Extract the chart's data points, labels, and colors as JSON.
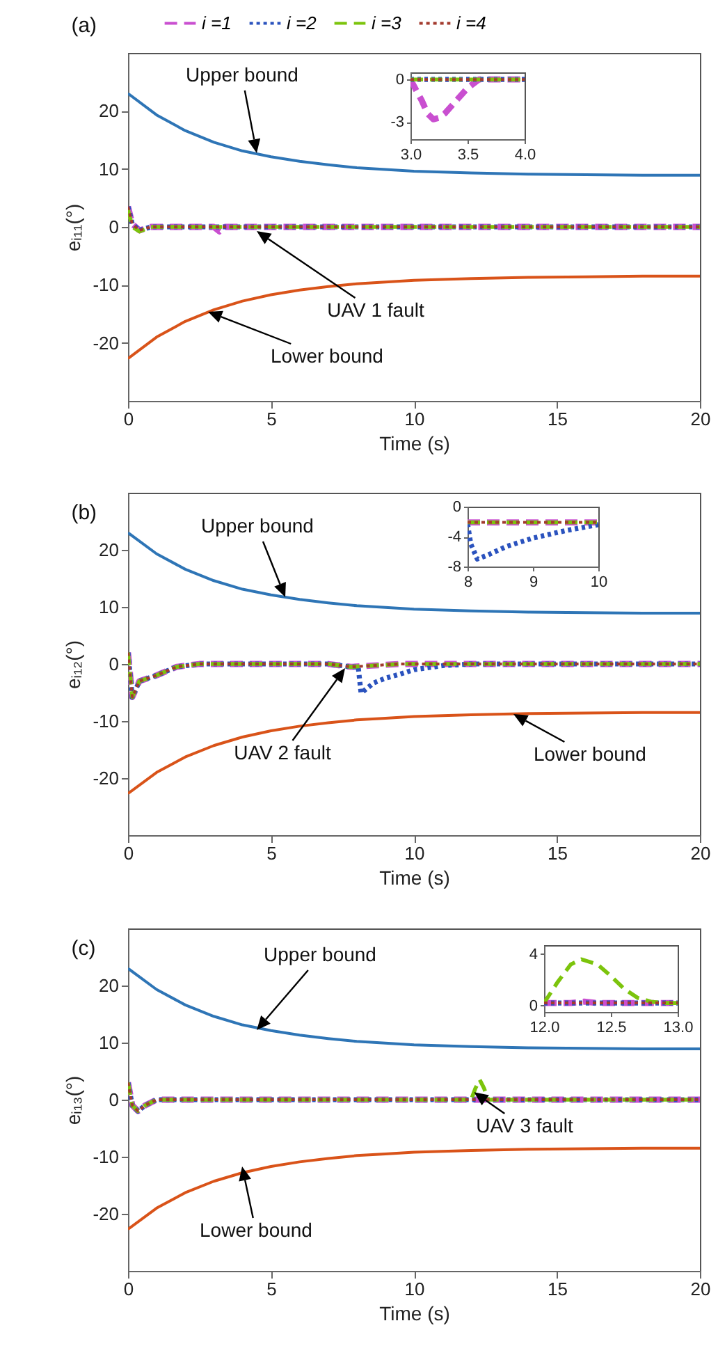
{
  "chart_data": [
    {
      "type": "line",
      "title": "(a)",
      "xlabel": "Time (s)",
      "ylabel": "eᵢ₁₁(°)",
      "xlim": [
        0,
        20
      ],
      "xticks": [
        0,
        5,
        10,
        15,
        20
      ],
      "ylim": [
        -30,
        30
      ],
      "yticks": [
        -20,
        -10,
        0,
        10,
        20
      ],
      "legend": "top",
      "series": [
        {
          "color": "#2e75b6",
          "line_style": "solid",
          "x": [
            0,
            1,
            2,
            3,
            4,
            5,
            6,
            7,
            8,
            9,
            10,
            12,
            14,
            16,
            18,
            20
          ],
          "values": [
            23,
            19.3,
            16.6,
            14.6,
            13.1,
            12.1,
            11.3,
            10.7,
            10.2,
            9.9,
            9.6,
            9.3,
            9.1,
            9.0,
            8.9,
            8.9
          ]
        },
        {
          "color": "#d95319",
          "line_style": "solid",
          "x": [
            0,
            1,
            2,
            3,
            4,
            5,
            6,
            7,
            8,
            9,
            10,
            12,
            14,
            16,
            18,
            20
          ],
          "values": [
            -22.7,
            -19,
            -16.3,
            -14.3,
            -12.8,
            -11.7,
            -10.9,
            -10.3,
            -9.8,
            -9.5,
            -9.2,
            -8.9,
            -8.7,
            -8.6,
            -8.5,
            -8.5
          ]
        },
        {
          "name": "i =1",
          "color": "#c94fd0",
          "line_style": "dashed",
          "x": [
            0,
            0.15,
            0.4,
            0.8,
            3.0,
            3.2,
            3.4,
            20
          ],
          "values": [
            3.5,
            0.5,
            -0.6,
            0,
            0,
            -0.8,
            0,
            0
          ]
        },
        {
          "name": "i =2",
          "color": "#2a52be",
          "line_style": "dotted",
          "x": [
            0,
            0.15,
            0.4,
            0.8,
            20
          ],
          "values": [
            3.5,
            0.5,
            -0.6,
            0,
            0
          ]
        },
        {
          "name": "i =3",
          "color": "#7cc40c",
          "line_style": "dashed",
          "x": [
            0,
            0.15,
            0.4,
            0.8,
            20
          ],
          "values": [
            3,
            0,
            -0.8,
            0,
            0
          ]
        },
        {
          "name": "i =4",
          "color": "#a33a2e",
          "line_style": "dotted",
          "x": [
            0,
            0.15,
            0.4,
            0.8,
            20
          ],
          "values": [
            3.5,
            0.5,
            -0.6,
            0,
            0
          ]
        }
      ],
      "annotations": [
        "Upper bound",
        "UAV 1 fault",
        "Lower bound"
      ]
    },
    {
      "type": "line",
      "xlim": [
        3,
        4
      ],
      "xticks": [
        {
          "value": 3,
          "label": "3.0"
        },
        3.5,
        {
          "value": 4,
          "label": "4.0"
        }
      ],
      "ylim": [
        -4.2,
        0.5
      ],
      "yticks": [
        -3,
        0
      ],
      "series": [
        {
          "color": "#c94fd0",
          "line_style": "dashed",
          "x": [
            3,
            3.1,
            3.15,
            3.2,
            3.25,
            3.3,
            3.4,
            3.5,
            3.6,
            4
          ],
          "values": [
            0,
            -1.5,
            -2.4,
            -2.8,
            -2.7,
            -2.4,
            -1.5,
            -0.6,
            0,
            0
          ]
        },
        {
          "color": "#2a52be",
          "line_style": "dotted",
          "x": [
            3,
            4
          ],
          "values": [
            0,
            0
          ]
        },
        {
          "color": "#7cc40c",
          "line_style": "dashed",
          "x": [
            3,
            4
          ],
          "values": [
            0,
            0
          ]
        },
        {
          "color": "#a33a2e",
          "line_style": "dotted",
          "x": [
            3,
            4
          ],
          "values": [
            0,
            0
          ]
        }
      ]
    },
    {
      "type": "line",
      "title": "(b)",
      "xlabel": "Time (s)",
      "ylabel": "eᵢ₁₂(°)",
      "xlim": [
        0,
        20
      ],
      "xticks": [
        0,
        5,
        10,
        15,
        20
      ],
      "ylim": [
        -30,
        30
      ],
      "yticks": [
        -20,
        -10,
        0,
        10,
        20
      ],
      "series": [
        {
          "color": "#2e75b6",
          "line_style": "solid",
          "x": [
            0,
            1,
            2,
            3,
            4,
            5,
            6,
            7,
            8,
            9,
            10,
            12,
            14,
            16,
            18,
            20
          ],
          "values": [
            23,
            19.3,
            16.6,
            14.6,
            13.1,
            12.1,
            11.3,
            10.7,
            10.2,
            9.9,
            9.6,
            9.3,
            9.1,
            9.0,
            8.9,
            8.9
          ]
        },
        {
          "color": "#d95319",
          "line_style": "solid",
          "x": [
            0,
            1,
            2,
            3,
            4,
            5,
            6,
            7,
            8,
            9,
            10,
            12,
            14,
            16,
            18,
            20
          ],
          "values": [
            -22.7,
            -19,
            -16.3,
            -14.3,
            -12.8,
            -11.7,
            -10.9,
            -10.3,
            -9.8,
            -9.5,
            -9.2,
            -8.9,
            -8.7,
            -8.6,
            -8.5,
            -8.5
          ]
        },
        {
          "color": "#c94fd0",
          "line_style": "dashed",
          "x": [
            0,
            0.15,
            0.4,
            1,
            1.7,
            2.5,
            7,
            7.8,
            8.5,
            9.5,
            20
          ],
          "values": [
            2,
            -5.8,
            -3,
            -2,
            -0.5,
            0,
            0,
            -0.5,
            -0.3,
            0,
            0
          ]
        },
        {
          "color": "#2a52be",
          "line_style": "dotted",
          "x": [
            0,
            0.15,
            0.4,
            1,
            1.7,
            2.5,
            7,
            7.8,
            8.05,
            8.15,
            8.6,
            9,
            9.5,
            10,
            11,
            12,
            20
          ],
          "values": [
            2,
            -5.8,
            -3,
            -2,
            -0.5,
            0,
            0,
            -0.5,
            -0.5,
            -5.1,
            -3.3,
            -2.5,
            -1.8,
            -1,
            -0.3,
            0,
            0
          ]
        },
        {
          "color": "#7cc40c",
          "line_style": "dashed",
          "x": [
            0,
            0.15,
            0.4,
            1,
            1.7,
            2.5,
            7,
            7.8,
            8.5,
            9.5,
            20
          ],
          "values": [
            2,
            -5.8,
            -3,
            -2,
            -0.5,
            0,
            0,
            -0.5,
            -0.3,
            0,
            0
          ]
        },
        {
          "color": "#a33a2e",
          "line_style": "dotted",
          "x": [
            0,
            0.15,
            0.4,
            1,
            1.7,
            2.5,
            7,
            7.8,
            8.5,
            9.5,
            20
          ],
          "values": [
            2,
            -5.8,
            -3,
            -2,
            -0.5,
            0,
            0,
            -0.5,
            -0.3,
            0,
            0
          ]
        }
      ],
      "annotations": [
        "Upper bound",
        "UAV 2 fault",
        "Lower bound"
      ]
    },
    {
      "type": "line",
      "xlim": [
        8,
        10
      ],
      "xticks": [
        8,
        9,
        10
      ],
      "ylim": [
        -8,
        0
      ],
      "yticks": [
        -8,
        -4,
        0
      ],
      "series": [
        {
          "color": "#c94fd0",
          "line_style": "dashed",
          "x": [
            8,
            10
          ],
          "values": [
            -2.1,
            -2.1
          ]
        },
        {
          "color": "#2a52be",
          "line_style": "dotted",
          "x": [
            8,
            8.05,
            8.15,
            8.3,
            8.6,
            9,
            9.5,
            10
          ],
          "values": [
            -2.3,
            -5,
            -7,
            -6.5,
            -5.3,
            -4.2,
            -3.2,
            -2.4
          ]
        },
        {
          "color": "#7cc40c",
          "line_style": "dashed",
          "x": [
            8,
            10
          ],
          "values": [
            -2.1,
            -2.1
          ]
        },
        {
          "color": "#a33a2e",
          "line_style": "dotted",
          "x": [
            8,
            10
          ],
          "values": [
            -2.1,
            -2.1
          ]
        }
      ]
    },
    {
      "type": "line",
      "title": "(c)",
      "xlabel": "Time (s)",
      "ylabel": "eᵢ₁₃(°)",
      "xlim": [
        0,
        20
      ],
      "xticks": [
        0,
        5,
        10,
        15,
        20
      ],
      "ylim": [
        -30,
        30
      ],
      "yticks": [
        -20,
        -10,
        0,
        10,
        20
      ],
      "series": [
        {
          "color": "#2e75b6",
          "line_style": "solid",
          "x": [
            0,
            1,
            2,
            3,
            4,
            5,
            6,
            7,
            8,
            9,
            10,
            12,
            14,
            16,
            18,
            20
          ],
          "values": [
            23,
            19.3,
            16.6,
            14.6,
            13.1,
            12.1,
            11.3,
            10.7,
            10.2,
            9.9,
            9.6,
            9.3,
            9.1,
            9.0,
            8.9,
            8.9
          ]
        },
        {
          "color": "#d95319",
          "line_style": "solid",
          "x": [
            0,
            1,
            2,
            3,
            4,
            5,
            6,
            7,
            8,
            9,
            10,
            12,
            14,
            16,
            18,
            20
          ],
          "values": [
            -22.7,
            -19,
            -16.3,
            -14.3,
            -12.8,
            -11.7,
            -10.9,
            -10.3,
            -9.8,
            -9.5,
            -9.2,
            -8.9,
            -8.7,
            -8.6,
            -8.5,
            -8.5
          ]
        },
        {
          "color": "#c94fd0",
          "line_style": "dashed",
          "x": [
            0,
            0.15,
            0.35,
            0.6,
            1,
            20
          ],
          "values": [
            3,
            -1,
            -2,
            -1,
            0,
            0
          ]
        },
        {
          "color": "#2a52be",
          "line_style": "dotted",
          "x": [
            0,
            0.15,
            0.35,
            0.6,
            1,
            20
          ],
          "values": [
            3,
            -1,
            -2,
            -1,
            0,
            0
          ]
        },
        {
          "color": "#7cc40c",
          "line_style": "dashed",
          "x": [
            0,
            0.15,
            0.35,
            0.6,
            1,
            12,
            12.15,
            12.3,
            12.45,
            12.6,
            20
          ],
          "values": [
            3,
            -1,
            -2,
            -1,
            0,
            0,
            2,
            3.5,
            2,
            0,
            0
          ]
        },
        {
          "color": "#a33a2e",
          "line_style": "dotted",
          "x": [
            0,
            0.15,
            0.35,
            0.6,
            1,
            20
          ],
          "values": [
            3,
            -1,
            -2,
            -1,
            0,
            0
          ]
        }
      ],
      "annotations": [
        "Upper bound",
        "Lower bound",
        {
          "text": "UAV 3 fault",
          "x": 12.1,
          "y": 1.3
        }
      ]
    },
    {
      "type": "line",
      "xlim": [
        12,
        13
      ],
      "xticks": [
        {
          "value": 12,
          "label": "12.0"
        },
        12.5,
        {
          "value": 13,
          "label": "13.0"
        }
      ],
      "ylim": [
        -0.5,
        4.7
      ],
      "yticks": [
        0,
        4
      ],
      "series": [
        {
          "color": "#c94fd0",
          "line_style": "dashed",
          "x": [
            12,
            12.2,
            12.3,
            12.4,
            13
          ],
          "values": [
            0.2,
            0.2,
            0.3,
            0.2,
            0.2
          ]
        },
        {
          "color": "#2a52be",
          "line_style": "dotted",
          "x": [
            12,
            13
          ],
          "values": [
            0.2,
            0.2
          ]
        },
        {
          "color": "#7cc40c",
          "line_style": "dashed",
          "x": [
            12,
            12.1,
            12.2,
            12.28,
            12.4,
            12.5,
            12.6,
            12.7,
            12.8,
            12.9,
            13
          ],
          "values": [
            0.2,
            1.8,
            3.2,
            3.6,
            3.2,
            2.3,
            1.3,
            0.6,
            0.3,
            0.2,
            0.2
          ]
        },
        {
          "color": "#a33a2e",
          "line_style": "dotted",
          "x": [
            12,
            13
          ],
          "values": [
            0.2,
            0.2
          ]
        }
      ]
    }
  ]
}
